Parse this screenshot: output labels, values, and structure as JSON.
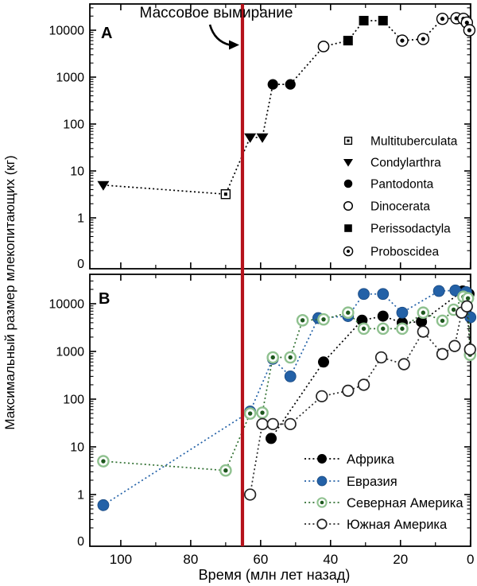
{
  "figure": {
    "ylabel": "Максимальный размер млекопитающих (кг)",
    "xlabel": "Время (млн лет назад)",
    "panel_a_label": "A",
    "panel_b_label": "B",
    "extinction": {
      "label": "Массовое вымирание",
      "time_ma": 65.2,
      "color": "#b5121b"
    },
    "colors": {
      "black": "#000000",
      "blue": "#2361a7",
      "blue_edge": "#1b4a80",
      "green_ring": "#8fc18f",
      "green_dot": "#1d571d",
      "green_line": "#2f6f30",
      "open_stroke": "#222222",
      "axis": "#000000"
    }
  },
  "chart_data": [
    {
      "type": "line",
      "panel": "A",
      "y_scale": "log",
      "ylim_decades": [
        0,
        4
      ],
      "xlim": [
        108.9,
        0
      ],
      "x_ticks_major": [
        100,
        80,
        60,
        40,
        20,
        0
      ],
      "x_ticks_minor": [
        110,
        90,
        70,
        50,
        30,
        10
      ],
      "y_tick_labels": [
        "10000",
        "1000",
        "100",
        "10",
        "1",
        "0"
      ],
      "legend": [
        {
          "label": "Multituberculata",
          "marker": "sqdot"
        },
        {
          "label": "Condylarthra",
          "marker": "tri"
        },
        {
          "label": "Pantodonta",
          "marker": "circle"
        },
        {
          "label": "Dinocerata",
          "marker": "open"
        },
        {
          "label": "Perissodactyla",
          "marker": "sq"
        },
        {
          "label": "Proboscidea",
          "marker": "cdot"
        }
      ],
      "points": [
        {
          "t": 105,
          "kg": 5,
          "group": "Condylarthra",
          "marker": "tri"
        },
        {
          "t": 70,
          "kg": 3.2,
          "group": "Multituberculata",
          "marker": "sqdot"
        },
        {
          "t": 63,
          "kg": 52,
          "group": "Condylarthra",
          "marker": "tri"
        },
        {
          "t": 59.5,
          "kg": 52,
          "group": "Condylarthra",
          "marker": "tri"
        },
        {
          "t": 56.5,
          "kg": 700,
          "group": "Pantodonta",
          "marker": "circle"
        },
        {
          "t": 51.5,
          "kg": 700,
          "group": "Pantodonta",
          "marker": "circle"
        },
        {
          "t": 42,
          "kg": 4500,
          "group": "Dinocerata",
          "marker": "open"
        },
        {
          "t": 35,
          "kg": 6000,
          "group": "Perissodactyla",
          "marker": "sq"
        },
        {
          "t": 30.5,
          "kg": 16000,
          "group": "Perissodactyla",
          "marker": "sq"
        },
        {
          "t": 25,
          "kg": 16000,
          "group": "Perissodactyla",
          "marker": "sq"
        },
        {
          "t": 19.5,
          "kg": 6000,
          "group": "Proboscidea",
          "marker": "cdot"
        },
        {
          "t": 13.5,
          "kg": 6500,
          "group": "Proboscidea",
          "marker": "cdot"
        },
        {
          "t": 8,
          "kg": 17500,
          "group": "Proboscidea",
          "marker": "cdot"
        },
        {
          "t": 4,
          "kg": 18000,
          "group": "Proboscidea",
          "marker": "cdot"
        },
        {
          "t": 2,
          "kg": 17500,
          "group": "Proboscidea",
          "marker": "cdot"
        },
        {
          "t": 1,
          "kg": 14500,
          "group": "Proboscidea",
          "marker": "cdot"
        },
        {
          "t": 0.3,
          "kg": 10000,
          "group": "Proboscidea",
          "marker": "cdot"
        }
      ]
    },
    {
      "type": "line",
      "panel": "B",
      "y_scale": "log",
      "ylim_decades": [
        0,
        4
      ],
      "xlim": [
        108.9,
        0
      ],
      "x_ticks_major": [
        100,
        80,
        60,
        40,
        20,
        0
      ],
      "x_ticks_minor": [
        110,
        90,
        70,
        50,
        30,
        10
      ],
      "y_tick_labels": [
        "10000",
        "1000",
        "100",
        "10",
        "1",
        "0"
      ],
      "series": [
        {
          "name": "Африка",
          "marker": "africa",
          "points": [
            [
              57,
              15
            ],
            [
              42,
              600
            ],
            [
              31,
              4500
            ],
            [
              25,
              5500
            ],
            [
              19.5,
              4000
            ],
            [
              14,
              4200
            ],
            [
              2.2,
              18500
            ],
            [
              0.4,
              16000
            ]
          ]
        },
        {
          "name": "Евразия",
          "marker": "eurasia",
          "points": [
            [
              105,
              0.6
            ],
            [
              63,
              55
            ],
            [
              56.5,
              700
            ],
            [
              51.5,
              300
            ],
            [
              43.5,
              5000
            ],
            [
              35,
              5500
            ],
            [
              30.5,
              16000
            ],
            [
              25,
              16000
            ],
            [
              19.5,
              6500
            ],
            [
              9,
              18500
            ],
            [
              4.3,
              19000
            ],
            [
              1.2,
              17500
            ],
            [
              0,
              5200
            ]
          ]
        },
        {
          "name": "Северная Америка",
          "marker": "namerica",
          "points": [
            [
              105,
              5
            ],
            [
              70,
              3.2
            ],
            [
              63,
              50
            ],
            [
              59.5,
              52
            ],
            [
              56.5,
              750
            ],
            [
              51.5,
              750
            ],
            [
              48,
              4500
            ],
            [
              42,
              4700
            ],
            [
              35,
              6500
            ],
            [
              30.5,
              3000
            ],
            [
              25,
              3000
            ],
            [
              19.5,
              3000
            ],
            [
              13.5,
              6500
            ],
            [
              8,
              4400
            ],
            [
              4.8,
              7500
            ],
            [
              2,
              14000
            ],
            [
              0.7,
              13000
            ],
            [
              0.1,
              850
            ]
          ]
        },
        {
          "name": "Южная Америка",
          "marker": "samerica",
          "points": [
            [
              63,
              1
            ],
            [
              59.5,
              30
            ],
            [
              56.5,
              30
            ],
            [
              51.5,
              30
            ],
            [
              42.5,
              115
            ],
            [
              35,
              150
            ],
            [
              30.5,
              200
            ],
            [
              25.5,
              750
            ],
            [
              19,
              540
            ],
            [
              13.5,
              2600
            ],
            [
              8,
              880
            ],
            [
              4.5,
              1300
            ],
            [
              2.5,
              6500
            ],
            [
              1,
              8800
            ],
            [
              0.1,
              1100
            ]
          ]
        }
      ]
    }
  ]
}
